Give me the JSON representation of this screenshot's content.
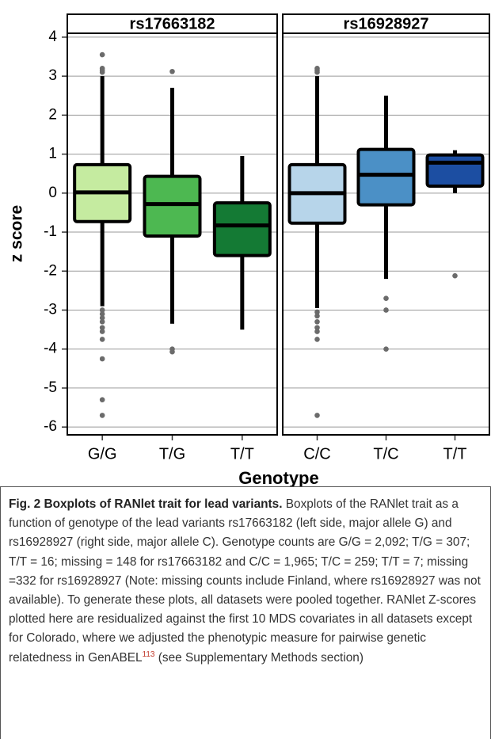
{
  "chart_data": {
    "type": "box",
    "y_label": "z score",
    "x_label": "Genotype",
    "ylim": [
      -6.2,
      4.1
    ],
    "yticks": [
      -6,
      -5,
      -4,
      -3,
      -2,
      -1,
      0,
      1,
      2,
      3,
      4
    ],
    "grid": true,
    "panels": [
      {
        "title": "rs17663182",
        "boxes": [
          {
            "category": "G/G",
            "color": "#c5eba0",
            "low": -2.9,
            "q1": -0.73,
            "median": 0.02,
            "q3": 0.73,
            "high": 3.0,
            "outliers": [
              3.1,
              3.15,
              3.2,
              3.55,
              -3.0,
              -3.1,
              -3.2,
              -3.3,
              -3.45,
              -3.55,
              -3.75,
              -4.25,
              -5.3,
              -5.7
            ]
          },
          {
            "category": "T/G",
            "color": "#4db851",
            "low": -3.35,
            "q1": -1.1,
            "median": -0.28,
            "q3": 0.43,
            "high": 2.7,
            "outliers": [
              3.12,
              -4.0,
              -4.07
            ]
          },
          {
            "category": "T/T",
            "color": "#147a34",
            "low": -3.5,
            "q1": -1.6,
            "median": -0.83,
            "q3": -0.25,
            "high": 0.95,
            "outliers": []
          }
        ]
      },
      {
        "title": "rs16928927",
        "boxes": [
          {
            "category": "C/C",
            "color": "#b7d5ea",
            "low": -2.95,
            "q1": -0.77,
            "median": 0.0,
            "q3": 0.73,
            "high": 3.0,
            "outliers": [
              3.1,
              3.15,
              3.2,
              -3.05,
              -3.15,
              -3.3,
              -3.45,
              -3.55,
              -3.75,
              -5.7
            ]
          },
          {
            "category": "T/C",
            "color": "#4b90c6",
            "low": -2.2,
            "q1": -0.3,
            "median": 0.47,
            "q3": 1.12,
            "high": 2.5,
            "outliers": [
              -2.7,
              -3.0,
              -4.0
            ]
          },
          {
            "category": "T/T",
            "color": "#1c4ea2",
            "low": 0.0,
            "q1": 0.18,
            "median": 0.78,
            "q3": 0.98,
            "high": 1.1,
            "outliers": [
              -2.12
            ]
          }
        ]
      }
    ]
  },
  "caption": {
    "title": "Fig. 2 Boxplots of RANlet trait for lead variants.",
    "body_before": "Boxplots of the RANlet trait as a function of genotype of the lead variants rs17663182 (left side, major allele G) and rs16928927 (right side, major allele C). Genotype counts are G/G = 2,092; T/G = 307; T/T = 16; missing = 148 for rs17663182 and C/C = 1,965; T/C = 259; T/T = 7; missing =332 for rs16928927 (Note: missing counts include Finland, where rs16928927 was not available). To generate these plots, all datasets were pooled together. RANlet Z-scores plotted here are residualized against the first 10 MDS covariates in all datasets except for Colorado, where we adjusted the phenotypic measure for pairwise genetic relatedness in GenABEL",
    "superscript": "113",
    "body_after": " (see Supplementary Methods section)"
  }
}
